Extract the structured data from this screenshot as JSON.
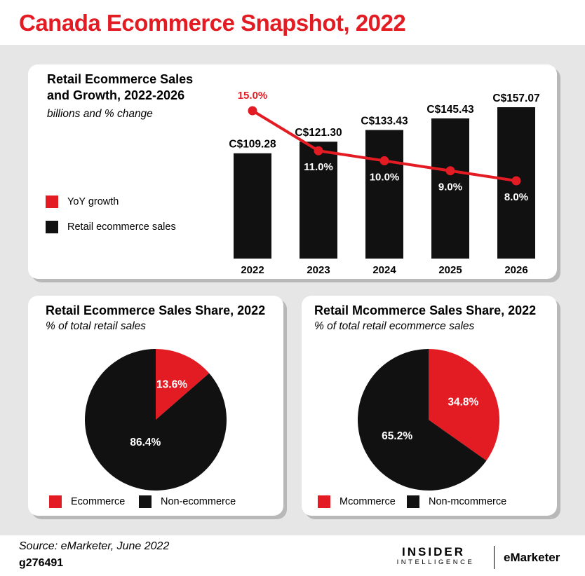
{
  "header": {
    "title": "Canada Ecommerce Snapshot, 2022"
  },
  "colors": {
    "accent": "#e31b23",
    "dark": "#111111",
    "panel": "#e6e6e6"
  },
  "chart_data": [
    {
      "type": "bar",
      "title": "Retail Ecommerce Sales and Growth, 2022-2026",
      "subtitle": "billions and % change",
      "categories": [
        "2022",
        "2023",
        "2024",
        "2025",
        "2026"
      ],
      "series": [
        {
          "name": "Retail ecommerce sales",
          "values": [
            109.28,
            121.3,
            133.43,
            145.43,
            157.07
          ],
          "labels": [
            "C$109.28",
            "C$121.30",
            "C$133.43",
            "C$145.43",
            "C$157.07"
          ]
        },
        {
          "name": "YoY growth",
          "type": "line",
          "values": [
            15.0,
            11.0,
            10.0,
            9.0,
            8.0
          ],
          "labels": [
            "15.0%",
            "11.0%",
            "10.0%",
            "9.0%",
            "8.0%"
          ]
        }
      ],
      "legend": [
        "YoY growth",
        "Retail ecommerce sales"
      ],
      "legend_position": "left",
      "ylim": [
        0,
        160
      ],
      "grid": false
    },
    {
      "type": "pie",
      "title": "Retail Ecommerce Sales Share, 2022",
      "subtitle": "% of total retail sales",
      "slices": [
        {
          "name": "Ecommerce",
          "value": 13.6,
          "label": "13.6%",
          "color": "#e31b23"
        },
        {
          "name": "Non-ecommerce",
          "value": 86.4,
          "label": "86.4%",
          "color": "#111111"
        }
      ],
      "legend_position": "bottom"
    },
    {
      "type": "pie",
      "title": "Retail Mcommerce Sales Share, 2022",
      "subtitle": "% of total retail ecommerce sales",
      "slices": [
        {
          "name": "Mcommerce",
          "value": 34.8,
          "label": "34.8%",
          "color": "#e31b23"
        },
        {
          "name": "Non-mcommerce",
          "value": 65.2,
          "label": "65.2%",
          "color": "#111111"
        }
      ],
      "legend_position": "bottom"
    }
  ],
  "footer": {
    "source": "Source: eMarketer, June 2022",
    "id": "g276491",
    "brand_insider": "INSIDER",
    "brand_intelligence": "INTELLIGENCE",
    "brand_emarketer": "eMarketer"
  }
}
